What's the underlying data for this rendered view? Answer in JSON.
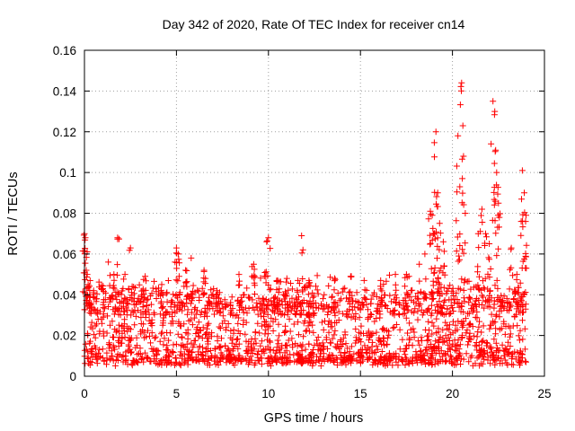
{
  "chart_data": {
    "type": "scatter",
    "title": "Day 342 of 2020, Rate Of TEC Index for receiver cn14",
    "xlabel": "GPS time / hours",
    "ylabel": "ROTI / TECUs",
    "xlim": [
      0,
      25
    ],
    "ylim": [
      0,
      0.16
    ],
    "x_ticks": [
      0,
      5,
      10,
      15,
      20,
      25
    ],
    "x_tick_labels": [
      "0",
      "5",
      "10",
      "15",
      "20",
      "25"
    ],
    "y_ticks": [
      0,
      0.02,
      0.04,
      0.06,
      0.08,
      0.1,
      0.12,
      0.14,
      0.16
    ],
    "y_tick_labels": [
      "0",
      "0.02",
      "0.04",
      "0.06",
      "0.08",
      "0.1",
      "0.12",
      "0.14",
      "0.16"
    ],
    "grid": true,
    "marker": "+",
    "marker_color": "#ff0000",
    "data_x_range": [
      0,
      24
    ],
    "series": [
      {
        "name": "ROTI",
        "baseline_band": [
          0.005,
          0.03
        ],
        "typical_upper": 0.05,
        "x": [
          0.0,
          0.05,
          0.1,
          0.15,
          0.2,
          0.3,
          0.5,
          1.0,
          1.3,
          1.6,
          1.8,
          2.2,
          2.5,
          3.3,
          4.2,
          5.0,
          5.1,
          5.5,
          5.8,
          6.5,
          7.2,
          8.4,
          9.2,
          9.9,
          10.0,
          10.5,
          11.0,
          11.6,
          11.8,
          12.2,
          13.6,
          14.5,
          15.2,
          16.1,
          16.9,
          17.5,
          18.2,
          18.5,
          18.8,
          18.9,
          19.0,
          19.1,
          19.2,
          19.3,
          19.5,
          20.3,
          20.4,
          20.5,
          20.6,
          20.7,
          21.4,
          21.6,
          21.8,
          22.0,
          22.2,
          22.3,
          22.35,
          22.4,
          22.5,
          23.2,
          23.5,
          23.8,
          23.9,
          24.0
        ],
        "y": [
          0.07,
          0.068,
          0.052,
          0.05,
          0.045,
          0.04,
          0.042,
          0.043,
          0.056,
          0.05,
          0.068,
          0.05,
          0.063,
          0.049,
          0.045,
          0.063,
          0.06,
          0.052,
          0.058,
          0.052,
          0.042,
          0.05,
          0.055,
          0.066,
          0.068,
          0.047,
          0.048,
          0.047,
          0.069,
          0.047,
          0.048,
          0.049,
          0.047,
          0.047,
          0.05,
          0.05,
          0.055,
          0.06,
          0.081,
          0.079,
          0.07,
          0.12,
          0.09,
          0.075,
          0.066,
          0.118,
          0.093,
          0.144,
          0.108,
          0.08,
          0.07,
          0.082,
          0.07,
          0.065,
          0.135,
          0.13,
          0.111,
          0.1,
          0.085,
          0.063,
          0.05,
          0.101,
          0.09,
          0.079
        ]
      }
    ]
  }
}
